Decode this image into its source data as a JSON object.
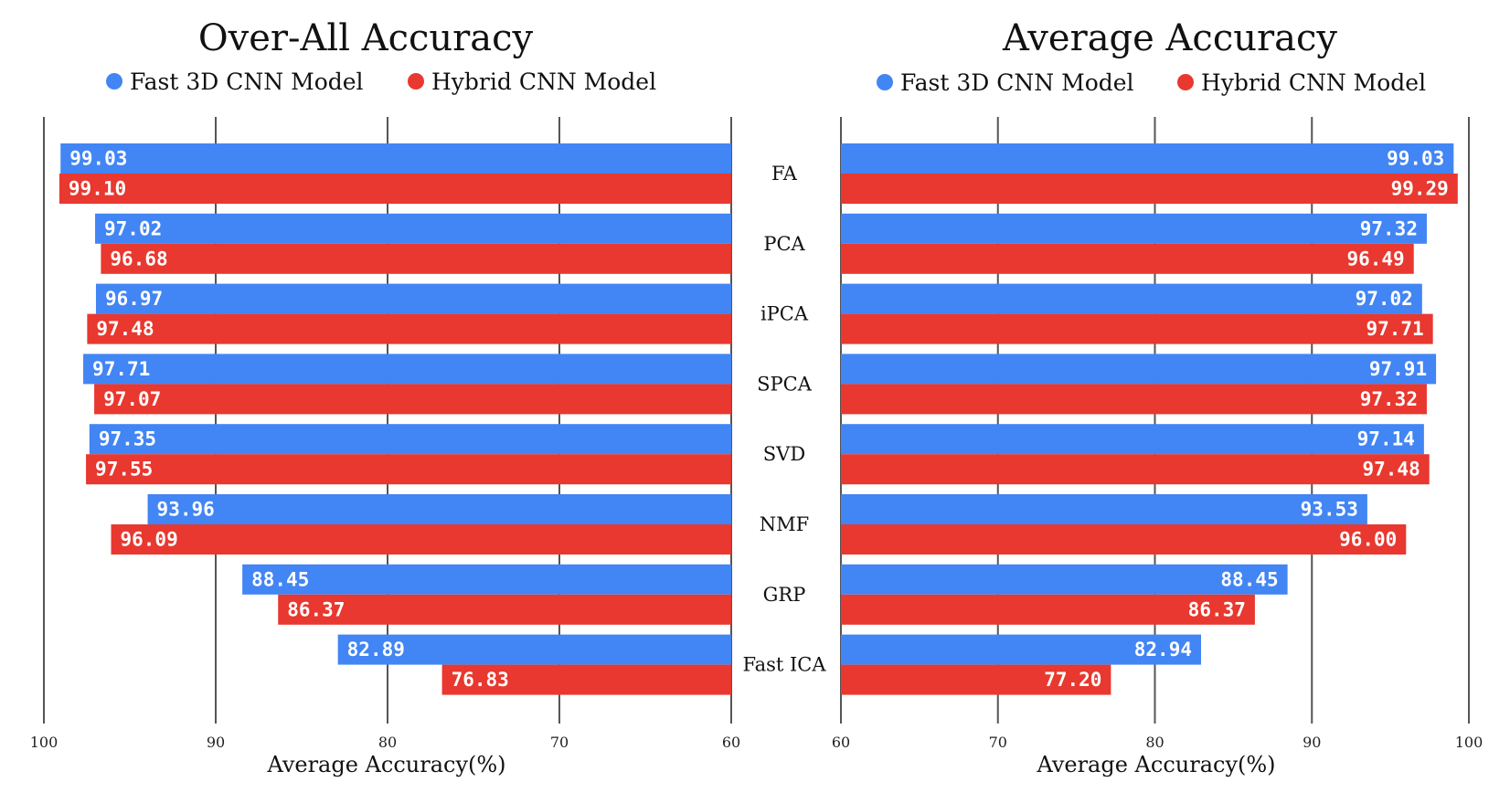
{
  "colors": {
    "fast": "#4285f4",
    "hybrid": "#e8382f"
  },
  "chart_data": [
    {
      "type": "bar",
      "orientation": "horizontal",
      "direction": "reversed",
      "title": "Over-All Accuracy",
      "xlabel": "Average Accuracy(%)",
      "xlim": [
        60,
        100
      ],
      "xticks": [
        "100",
        "90",
        "80",
        "70",
        "60"
      ],
      "legend_position": "top",
      "grid": true,
      "categories": [
        "FA",
        "PCA",
        "iPCA",
        "SPCA",
        "SVD",
        "NMF",
        "GRP",
        "Fast ICA"
      ],
      "series": [
        {
          "name": "Fast 3D CNN Model",
          "color": "#4285f4",
          "values": [
            99.03,
            97.02,
            96.97,
            97.71,
            97.35,
            93.96,
            88.45,
            82.89
          ],
          "labels": [
            "99.03",
            "97.02",
            "96.97",
            "97.71",
            "97.35",
            "93.96",
            "88.45",
            "82.89"
          ]
        },
        {
          "name": "Hybrid CNN Model",
          "color": "#e8382f",
          "values": [
            99.1,
            96.68,
            97.48,
            97.07,
            97.55,
            96.09,
            86.37,
            76.83
          ],
          "labels": [
            "99.10",
            "96.68",
            "97.48",
            "97.07",
            "97.55",
            "96.09",
            "86.37",
            "76.83"
          ]
        }
      ]
    },
    {
      "type": "bar",
      "orientation": "horizontal",
      "direction": "normal",
      "title": "Average Accuracy",
      "xlabel": "Average Accuracy(%)",
      "xlim": [
        60,
        100
      ],
      "xticks": [
        "60",
        "70",
        "80",
        "90",
        "100"
      ],
      "legend_position": "top",
      "grid": true,
      "categories": [
        "FA",
        "PCA",
        "iPCA",
        "SPCA",
        "SVD",
        "NMF",
        "GRP",
        "Fast ICA"
      ],
      "series": [
        {
          "name": "Fast 3D CNN Model",
          "color": "#4285f4",
          "values": [
            99.03,
            97.32,
            97.02,
            97.91,
            97.14,
            93.53,
            88.45,
            82.94
          ],
          "labels": [
            "99.03",
            "97.32",
            "97.02",
            "97.91",
            "97.14",
            "93.53",
            "88.45",
            "82.94"
          ]
        },
        {
          "name": "Hybrid CNN Model",
          "color": "#e8382f",
          "values": [
            99.29,
            96.49,
            97.71,
            97.32,
            97.48,
            96.0,
            86.37,
            77.2
          ],
          "labels": [
            "99.29",
            "96.49",
            "97.71",
            "97.32",
            "97.48",
            "96.00",
            "86.37",
            "77.20"
          ]
        }
      ]
    }
  ]
}
